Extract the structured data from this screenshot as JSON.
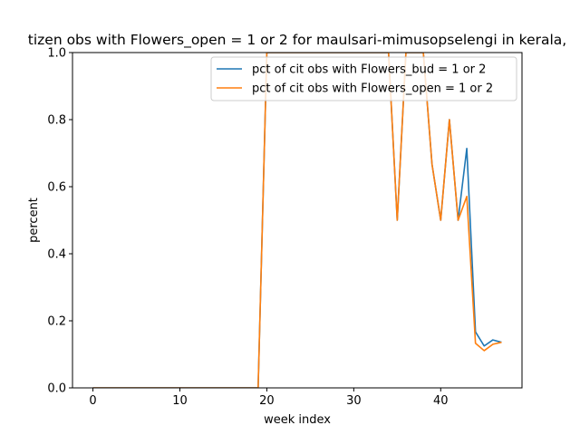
{
  "chart_data": {
    "type": "line",
    "title": "tizen obs with Flowers_open = 1 or 2 for maulsari-mimusopselengi in kerala,",
    "xlabel": "week index",
    "ylabel": "percent",
    "xlim": [
      -2.35,
      49.35
    ],
    "ylim": [
      0.0,
      1.0
    ],
    "xticks": [
      0,
      10,
      20,
      30,
      40
    ],
    "yticks": [
      0.0,
      0.2,
      0.4,
      0.6,
      0.8,
      1.0
    ],
    "xtick_labels": [
      "0",
      "10",
      "20",
      "30",
      "40"
    ],
    "ytick_labels": [
      "0.0",
      "0.2",
      "0.4",
      "0.6",
      "0.8",
      "1.0"
    ],
    "grid": false,
    "legend_position": "upper right",
    "series": [
      {
        "name": "pct of cit obs with Flowers_bud = 1 or 2",
        "color": "#1f77b4",
        "x": [
          0,
          1,
          2,
          3,
          4,
          5,
          6,
          7,
          8,
          9,
          10,
          11,
          12,
          13,
          14,
          15,
          16,
          17,
          18,
          19,
          20,
          21,
          22,
          23,
          24,
          25,
          26,
          27,
          28,
          29,
          30,
          31,
          32,
          33,
          34,
          35,
          36,
          37,
          38,
          39,
          40,
          41,
          42,
          43,
          44,
          45,
          46,
          47
        ],
        "y": [
          0,
          0,
          0,
          0,
          0,
          0,
          0,
          0,
          0,
          0,
          0,
          0,
          0,
          0,
          0,
          0,
          0,
          0,
          0,
          0,
          1,
          1,
          1,
          1,
          1,
          1,
          1,
          1,
          1,
          1,
          1,
          1,
          1,
          1,
          1,
          0.5,
          1,
          1,
          1,
          0.667,
          0.5,
          0.8,
          0.5,
          0.714,
          0.167,
          0.125,
          0.143,
          0.136
        ]
      },
      {
        "name": "pct of cit obs with Flowers_open = 1 or 2",
        "color": "#ff7f0e",
        "x": [
          0,
          1,
          2,
          3,
          4,
          5,
          6,
          7,
          8,
          9,
          10,
          11,
          12,
          13,
          14,
          15,
          16,
          17,
          18,
          19,
          20,
          21,
          22,
          23,
          24,
          25,
          26,
          27,
          28,
          29,
          30,
          31,
          32,
          33,
          34,
          35,
          36,
          37,
          38,
          39,
          40,
          41,
          42,
          43,
          44,
          45,
          46,
          47
        ],
        "y": [
          0,
          0,
          0,
          0,
          0,
          0,
          0,
          0,
          0,
          0,
          0,
          0,
          0,
          0,
          0,
          0,
          0,
          0,
          0,
          0,
          1,
          1,
          1,
          1,
          1,
          1,
          1,
          1,
          1,
          1,
          1,
          1,
          1,
          1,
          1,
          0.5,
          1,
          1,
          1,
          0.667,
          0.5,
          0.8,
          0.5,
          0.571,
          0.133,
          0.111,
          0.13,
          0.136
        ]
      }
    ]
  }
}
